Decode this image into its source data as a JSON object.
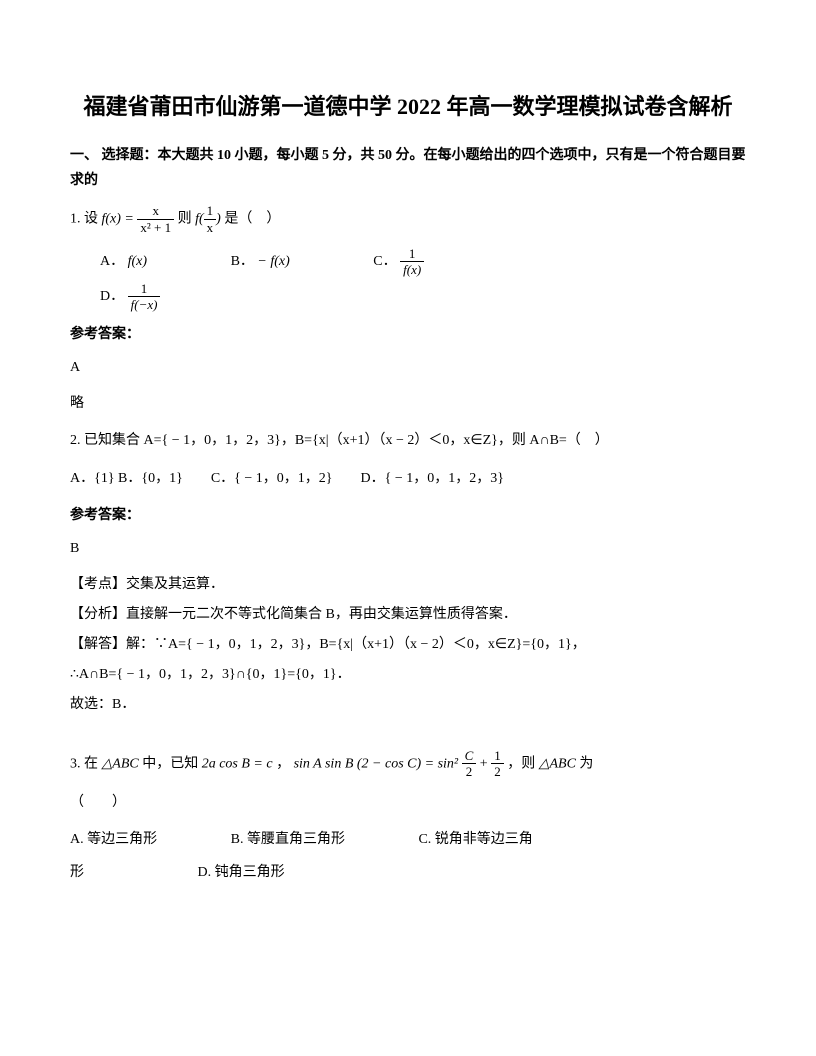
{
  "title": "福建省莆田市仙游第一道德中学 2022 年高一数学理模拟试卷含解析",
  "section_header": "一、 选择题：本大题共 10 小题，每小题 5 分，共 50 分。在每小题给出的四个选项中，只有是一个符合题目要求的",
  "q1": {
    "prefix": "1. 设 ",
    "fx_eq": "f(x) = ",
    "frac1_num": "x",
    "frac1_den": "x² + 1",
    "mid": " 则 ",
    "f1x_num": "1",
    "f1x_den": "x",
    "suffix": " 是（　）",
    "optA_label": "A．",
    "optA": "f(x)",
    "optB_label": "B．",
    "optB": "− f(x)",
    "optC_label": "C．",
    "optC_num": "1",
    "optC_den": "f(x)",
    "optD_label": "D．",
    "optD_num": "1",
    "optD_den": "f(−x)"
  },
  "answer_label": "参考答案：",
  "q1_answer": "A",
  "q1_brief": "略",
  "q2": {
    "text": "2. 已知集合 A={ − 1，0，1，2，3}，B={x|（x+1）（x − 2）＜0，x∈Z}，则 A∩B=（　）",
    "options": "A．{1} B．{0，1}　　C．{ − 1，0，1，2}　　D．{ − 1，0，1，2，3}"
  },
  "q2_answer": "B",
  "q2_kaodian": "【考点】交集及其运算．",
  "q2_fenxi": "【分析】直接解一元二次不等式化简集合 B，再由交集运算性质得答案．",
  "q2_jieda1": "【解答】解：∵A={ − 1，0，1，2，3}，B={x|（x+1）（x − 2）＜0，x∈Z}={0，1}，",
  "q2_jieda2": "∴A∩B={ − 1，0，1，2，3}∩{0，1}={0，1}．",
  "q2_guxuan": "故选：B．",
  "q3": {
    "prefix": "3. 在 ",
    "tri": "△ABC",
    "mid1": " 中，已知 ",
    "eq1": "2a cos B = c",
    "mid2": "，",
    "eq2_left": "sin A sin B (2 − cos C) = sin²",
    "eq2_frac_num": "C",
    "eq2_frac_den": "2",
    "eq2_plus": " + ",
    "eq2_half_num": "1",
    "eq2_half_den": "2",
    "mid3": "，则 ",
    "tri2": "△ABC",
    "suffix": " 为",
    "paren": "（　　）",
    "optA": "A. 等边三角形",
    "optB": "B. 等腰直角三角形",
    "optC": "C. 锐角非等边三角",
    "optC2": "形",
    "optD": "D. 钝角三角形"
  }
}
